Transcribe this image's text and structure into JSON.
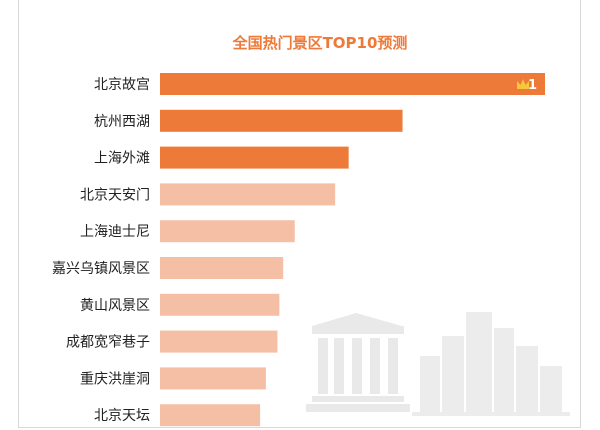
{
  "chart_data": {
    "type": "bar",
    "orientation": "horizontal",
    "title": "全国热门景区TOP10预测",
    "categories": [
      "北京故宫",
      "杭州西湖",
      "上海外滩",
      "北京天安门",
      "上海迪士尼",
      "嘉兴乌镇风景区",
      "黄山风景区",
      "成都宽窄巷子",
      "重庆洪崖洞",
      "北京天坛"
    ],
    "values": [
      100,
      63,
      49,
      45.5,
      35,
      32,
      31,
      30.5,
      27.5,
      26
    ],
    "xlim": [
      0,
      100
    ],
    "grid": false,
    "axes_visible": false,
    "top_rank_label": "1",
    "top_rank_icon": "crown-icon",
    "highlight_count": 3,
    "colors": {
      "highlight": "#ee7a3a",
      "normal": "#f5bfa6",
      "title": "#ee7a3a",
      "crown": "#f3c83a",
      "skyline": "#e9e9e9"
    }
  }
}
